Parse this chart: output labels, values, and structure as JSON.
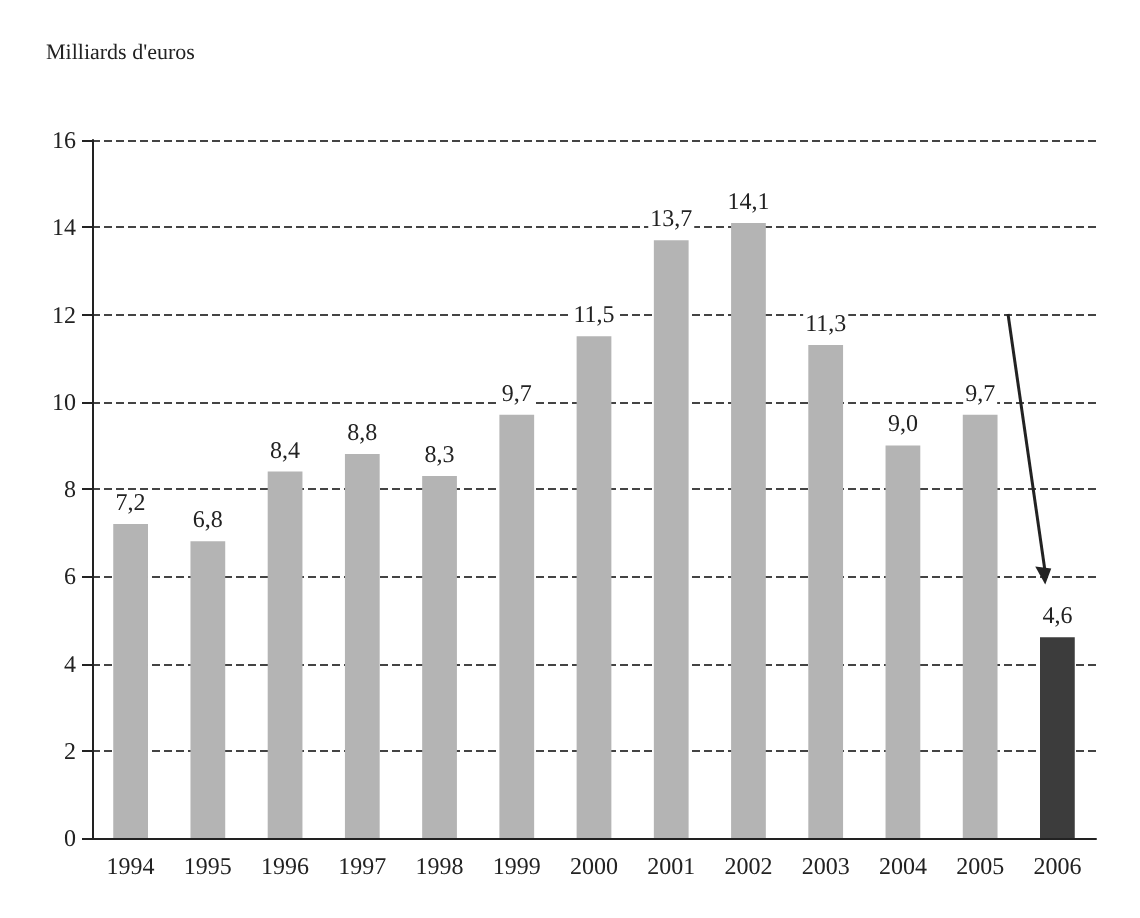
{
  "chart_data": {
    "type": "bar",
    "ylabel": "Milliards d'euros",
    "categories": [
      "1994",
      "1995",
      "1996",
      "1997",
      "1998",
      "1999",
      "2000",
      "2001",
      "2002",
      "2003",
      "2004",
      "2005",
      "2006"
    ],
    "values": [
      7.2,
      6.8,
      8.4,
      8.8,
      8.3,
      9.7,
      11.5,
      13.7,
      14.1,
      11.3,
      9.0,
      9.7,
      4.6
    ],
    "value_labels": [
      "7,2",
      "6,8",
      "8,4",
      "8,8",
      "8,3",
      "9,7",
      "11,5",
      "13,7",
      "14,1",
      "11,3",
      "9,0",
      "9,7",
      "4,6"
    ],
    "colors": [
      "#b4b4b4",
      "#b4b4b4",
      "#b4b4b4",
      "#b4b4b4",
      "#b4b4b4",
      "#b4b4b4",
      "#b4b4b4",
      "#b4b4b4",
      "#b4b4b4",
      "#b4b4b4",
      "#b4b4b4",
      "#b4b4b4",
      "#3c3c3c"
    ],
    "ylim": [
      0,
      16
    ],
    "yticks": [
      0,
      2,
      4,
      6,
      8,
      10,
      12,
      14,
      16
    ],
    "grid": "y"
  }
}
